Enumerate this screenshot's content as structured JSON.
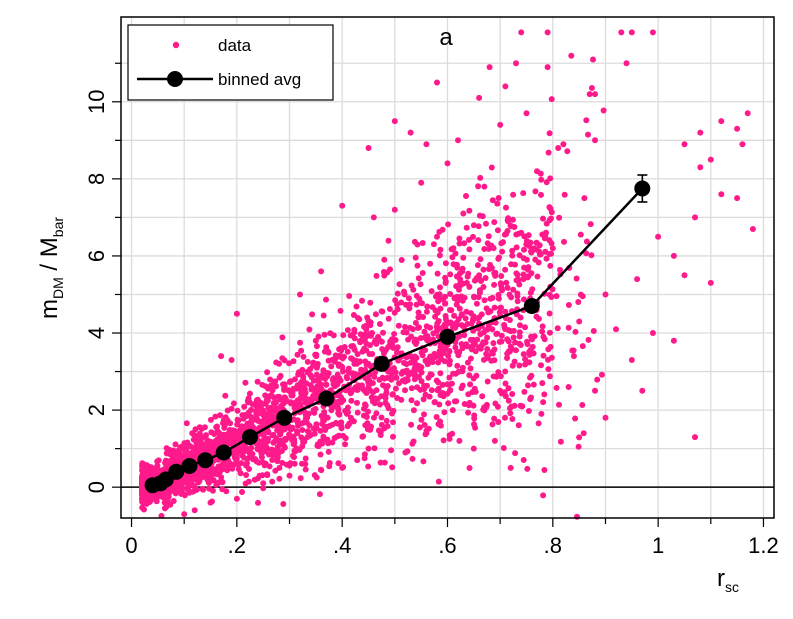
{
  "chart_data": {
    "type": "scatter",
    "title": "a",
    "xlabel": {
      "main": "r",
      "sub": "sc"
    },
    "ylabel": {
      "m": "m",
      "m_sub": "DM",
      "sep": " / ",
      "M": "M",
      "M_sub": "bar"
    },
    "xlim": [
      -0.02,
      1.22
    ],
    "ylim": [
      -0.8,
      12.2
    ],
    "x_ticks": [
      0,
      0.2,
      0.4,
      0.6,
      0.8,
      1.0,
      1.2
    ],
    "x_tick_labels": [
      "0",
      ".2",
      ".4",
      ".6",
      ".8",
      "1",
      "1.2"
    ],
    "x_minor_ticks": [
      0.1,
      0.3,
      0.5,
      0.7,
      0.9,
      1.1
    ],
    "y_ticks": [
      0,
      2,
      4,
      6,
      8,
      10
    ],
    "y_tick_labels": [
      "0",
      "2",
      "4",
      "6",
      "8",
      "10"
    ],
    "y_minor_ticks": [
      1,
      3,
      5,
      7,
      9,
      11
    ],
    "grid": true,
    "reference_line_y": 0,
    "legend": {
      "position": "top-left",
      "entries": [
        "data",
        "binned avg"
      ]
    },
    "colors": {
      "data": "#ff1a8c",
      "binned": "#000000",
      "grid": "#dcdcdc"
    },
    "series": [
      {
        "name": "binned avg",
        "x": [
          0.04,
          0.055,
          0.065,
          0.085,
          0.11,
          0.14,
          0.175,
          0.225,
          0.29,
          0.37,
          0.475,
          0.6,
          0.76,
          0.97
        ],
        "y": [
          0.05,
          0.1,
          0.2,
          0.4,
          0.55,
          0.7,
          0.9,
          1.3,
          1.8,
          2.3,
          3.2,
          3.9,
          4.7,
          7.75
        ],
        "error": [
          0,
          0,
          0,
          0,
          0,
          0,
          0,
          0,
          0,
          0,
          0,
          0,
          0,
          0.35
        ]
      },
      {
        "name": "data",
        "outliers": [
          [
            0.74,
            11.8
          ],
          [
            0.79,
            11.8
          ],
          [
            0.93,
            11.8
          ],
          [
            0.95,
            11.8
          ],
          [
            0.99,
            11.8
          ],
          [
            0.68,
            10.9
          ],
          [
            0.71,
            10.4
          ],
          [
            0.73,
            11.0
          ],
          [
            0.88,
            10.2
          ],
          [
            0.87,
            10.2
          ],
          [
            0.94,
            11.0
          ],
          [
            0.58,
            10.5
          ],
          [
            0.66,
            10.1
          ],
          [
            0.5,
            9.5
          ],
          [
            0.53,
            9.2
          ],
          [
            0.56,
            8.9
          ],
          [
            0.62,
            9.0
          ],
          [
            0.45,
            8.8
          ],
          [
            0.5,
            7.2
          ],
          [
            0.55,
            7.9
          ],
          [
            0.75,
            9.7
          ],
          [
            0.82,
            8.9
          ],
          [
            0.88,
            9.0
          ],
          [
            1.12,
            9.5
          ],
          [
            1.15,
            9.3
          ],
          [
            1.17,
            9.7
          ],
          [
            1.16,
            8.9
          ],
          [
            1.08,
            9.2
          ],
          [
            1.1,
            8.5
          ],
          [
            1.05,
            8.9
          ],
          [
            1.08,
            8.3
          ],
          [
            1.15,
            7.5
          ],
          [
            1.12,
            7.6
          ],
          [
            1.18,
            6.7
          ],
          [
            1.07,
            7.0
          ],
          [
            1.03,
            6.0
          ],
          [
            1.0,
            6.5
          ],
          [
            1.05,
            5.5
          ],
          [
            0.96,
            5.4
          ],
          [
            0.92,
            4.1
          ],
          [
            0.95,
            3.3
          ],
          [
            0.97,
            2.5
          ],
          [
            1.03,
            3.8
          ],
          [
            1.07,
            1.3
          ],
          [
            0.88,
            2.5
          ],
          [
            0.83,
            2.6
          ],
          [
            0.84,
            3.4
          ],
          [
            0.9,
            1.8
          ],
          [
            0.78,
            2.7
          ],
          [
            0.72,
            0.5
          ],
          [
            0.65,
            1.0
          ],
          [
            0.69,
            1.2
          ],
          [
            0.56,
            1.4
          ],
          [
            0.66,
            5.5
          ],
          [
            0.58,
            6.5
          ],
          [
            0.46,
            7.0
          ],
          [
            0.4,
            7.3
          ],
          [
            0.48,
            5.9
          ],
          [
            0.36,
            5.6
          ],
          [
            0.32,
            5.0
          ],
          [
            0.28,
            3.2
          ],
          [
            0.35,
            3.8
          ],
          [
            0.17,
            3.4
          ],
          [
            0.19,
            3.3
          ],
          [
            0.2,
            4.5
          ],
          [
            0.33,
            0.6
          ],
          [
            0.4,
            0.5
          ],
          [
            0.3,
            0.3
          ],
          [
            0.15,
            -0.4
          ],
          [
            0.12,
            -0.6
          ],
          [
            0.1,
            -0.7
          ],
          [
            0.2,
            -0.3
          ],
          [
            0.25,
            0.1
          ],
          [
            0.45,
            1.0
          ],
          [
            0.52,
            0.9
          ],
          [
            0.61,
            2.0
          ],
          [
            0.7,
            2.5
          ],
          [
            0.63,
            7.1
          ],
          [
            0.74,
            6.6
          ],
          [
            0.8,
            6.2
          ],
          [
            0.9,
            5.0
          ],
          [
            0.85,
            4.3
          ],
          [
            0.99,
            4.0
          ],
          [
            1.1,
            5.3
          ],
          [
            0.86,
            7.5
          ],
          [
            0.77,
            8.2
          ],
          [
            0.67,
            7.8
          ],
          [
            0.6,
            8.4
          ],
          [
            0.7,
            9.4
          ],
          [
            0.79,
            10.9
          ]
        ]
      }
    ]
  }
}
